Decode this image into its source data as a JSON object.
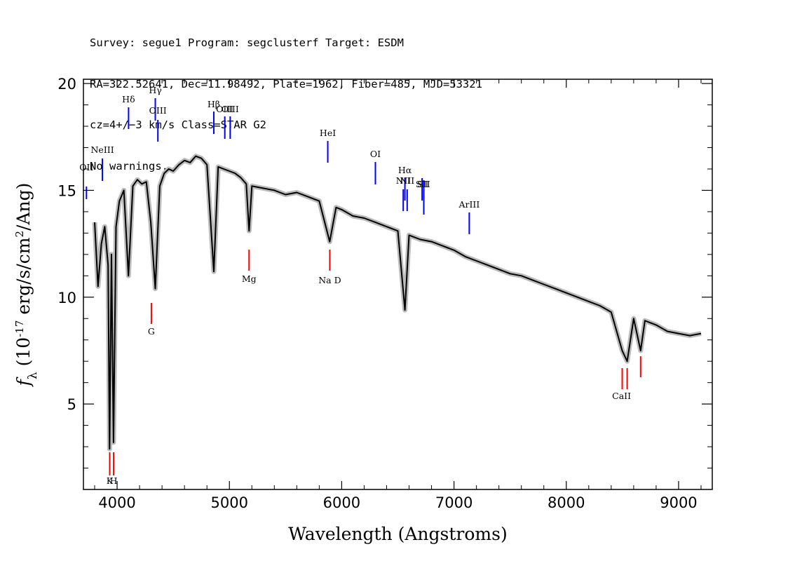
{
  "header": {
    "line1": "Survey: segue1 Program: segclusterf Target: ESDM",
    "line2": "RA=322.52641, Dec=11.98492, Plate=1962, Fiber=485, MJD=53321",
    "line3": "cz=4+/−3 km/s Class=STAR G2",
    "line4": "No warnings."
  },
  "chart_data": {
    "type": "line",
    "xlabel": "Wavelength (Angstroms)",
    "ylabel": "f_λ (10^-17 erg/s/cm^2/Ang)",
    "xlim": [
      3700,
      9300
    ],
    "ylim": [
      1,
      20.2
    ],
    "x_ticks": [
      4000,
      5000,
      6000,
      7000,
      8000,
      9000
    ],
    "y_ticks": [
      5,
      10,
      15,
      20
    ],
    "grid": false,
    "colors": {
      "spectrum": "#000000",
      "error_band": "#bbbbbb",
      "emission": "#0000ff",
      "absorption": "#ff0000"
    },
    "series": [
      {
        "x": [
          3800,
          3830,
          3860,
          3890,
          3920,
          3933,
          3950,
          3968,
          3990,
          4020,
          4060,
          4101,
          4140,
          4180,
          4220,
          4260,
          4300,
          4340,
          4380,
          4420,
          4460,
          4500,
          4550,
          4600,
          4650,
          4700,
          4750,
          4800,
          4861,
          4900,
          4950,
          5000,
          5050,
          5100,
          5150,
          5175,
          5200,
          5300,
          5400,
          5500,
          5600,
          5700,
          5800,
          5893,
          5950,
          6000,
          6100,
          6200,
          6300,
          6400,
          6500,
          6563,
          6600,
          6700,
          6800,
          6900,
          7000,
          7100,
          7200,
          7300,
          7400,
          7500,
          7600,
          7700,
          7800,
          7900,
          8000,
          8100,
          8200,
          8300,
          8400,
          8498,
          8542,
          8600,
          8662,
          8700,
          8800,
          8900,
          9000,
          9100,
          9200
        ],
        "values": [
          13.5,
          10.5,
          12.5,
          13.3,
          11.5,
          2.9,
          12.0,
          3.2,
          13.3,
          14.5,
          15.0,
          11.0,
          15.2,
          15.5,
          15.3,
          15.4,
          13.5,
          10.4,
          15.2,
          15.8,
          16.0,
          15.9,
          16.2,
          16.4,
          16.3,
          16.6,
          16.5,
          16.2,
          11.2,
          16.1,
          16.0,
          15.9,
          15.8,
          15.6,
          15.3,
          13.1,
          15.2,
          15.1,
          15.0,
          14.8,
          14.9,
          14.7,
          14.5,
          12.6,
          14.2,
          14.1,
          13.8,
          13.7,
          13.5,
          13.3,
          13.1,
          9.4,
          12.9,
          12.7,
          12.6,
          12.4,
          12.2,
          11.9,
          11.7,
          11.5,
          11.3,
          11.1,
          11.0,
          10.8,
          10.6,
          10.4,
          10.2,
          10.0,
          9.8,
          9.6,
          9.3,
          7.5,
          7.0,
          9.0,
          7.5,
          8.9,
          8.7,
          8.4,
          8.3,
          8.2,
          8.3
        ]
      }
    ],
    "emission_lines": [
      {
        "label": "OII",
        "wavelength": 3727
      },
      {
        "label": "NeIII",
        "wavelength": 3869
      },
      {
        "label": "Hδ",
        "wavelength": 4102
      },
      {
        "label": "Hγ",
        "wavelength": 4340
      },
      {
        "label": "OIII",
        "wavelength": 4363
      },
      {
        "label": "Hβ",
        "wavelength": 4861
      },
      {
        "label": "OIII",
        "wavelength": 4959
      },
      {
        "label": "OIII",
        "wavelength": 5007
      },
      {
        "label": "HeI",
        "wavelength": 5876
      },
      {
        "label": "OI",
        "wavelength": 6300
      },
      {
        "label": "NII",
        "wavelength": 6548
      },
      {
        "label": "Hα",
        "wavelength": 6563
      },
      {
        "label": "NII",
        "wavelength": 6583
      },
      {
        "label": "SII",
        "wavelength": 6716
      },
      {
        "label": "SII",
        "wavelength": 6731
      },
      {
        "label": "ArIII",
        "wavelength": 7136
      }
    ],
    "absorption_lines": [
      {
        "label": "K",
        "wavelength": 3934
      },
      {
        "label": "H",
        "wavelength": 3969
      },
      {
        "label": "G",
        "wavelength": 4305
      },
      {
        "label": "Mg",
        "wavelength": 5175
      },
      {
        "label": "Na D",
        "wavelength": 5894
      },
      {
        "label": "CaII",
        "wavelength": 8498
      },
      {
        "label": "CaII",
        "wavelength": 8542
      },
      {
        "label": "CaII",
        "wavelength": 8662
      }
    ]
  }
}
